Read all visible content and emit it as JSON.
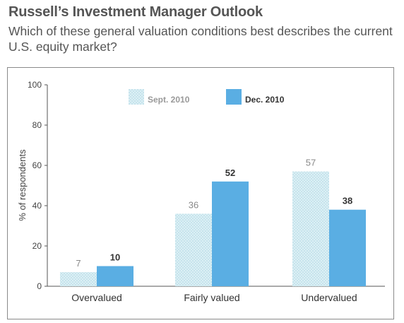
{
  "chart_data": {
    "type": "bar",
    "title": "Russell’s Investment Manager Outlook",
    "subtitle": "Which of these general valuation conditions best describes the current U.S. equity market?",
    "ylabel": "% of respondents",
    "xlabel": "",
    "ylim": [
      0,
      100
    ],
    "yticks": [
      0,
      20,
      40,
      60,
      80,
      100
    ],
    "categories": [
      "Overvalued",
      "Fairly valued",
      "Undervalued"
    ],
    "series": [
      {
        "name": "Sept. 2010",
        "values": [
          7,
          36,
          57
        ],
        "color": "#d6ecf3"
      },
      {
        "name": "Dec. 2010",
        "values": [
          10,
          52,
          38
        ],
        "color": "#5aaee3"
      }
    ],
    "legend_position": "top-center",
    "grid": false,
    "data_labels": true
  }
}
